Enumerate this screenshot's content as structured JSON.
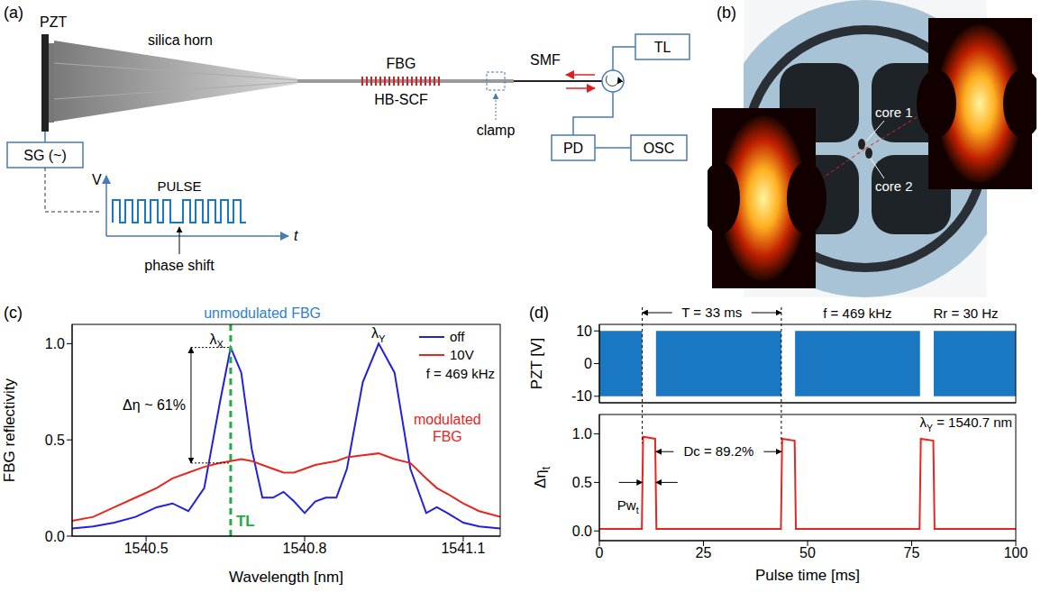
{
  "panel_a": {
    "letter": "(a)",
    "pzt": "PZT",
    "horn": "silica horn",
    "fbg": "FBG",
    "fiber": "HB-SCF",
    "clamp": "clamp",
    "smf": "SMF",
    "laser": "TL",
    "detector": "PD",
    "scope": "OSC",
    "generator": "SG (~)",
    "voltage_axis": "V",
    "pulse": "PULSE",
    "phase_shift": "phase shift",
    "time_axis": "t"
  },
  "panel_b": {
    "letter": "(b)",
    "core_1": "core 1",
    "core_2": "core 2"
  },
  "chart_data": [
    {
      "letter": "(c)",
      "type": "line",
      "x": [
        1540.36,
        1540.4,
        1540.44,
        1540.48,
        1540.52,
        1540.55,
        1540.58,
        1540.61,
        1540.64,
        1540.66,
        1540.68,
        1540.7,
        1540.72,
        1540.74,
        1540.76,
        1540.78,
        1540.8,
        1540.82,
        1540.84,
        1540.86,
        1540.88,
        1540.91,
        1540.94,
        1540.97,
        1541.0,
        1541.03,
        1541.05,
        1541.07,
        1541.1,
        1541.13,
        1541.17
      ],
      "series": [
        {
          "name": "off",
          "color": "#2020e0",
          "values": [
            0.04,
            0.05,
            0.07,
            0.1,
            0.15,
            0.17,
            0.13,
            0.25,
            0.7,
            0.98,
            0.85,
            0.45,
            0.2,
            0.2,
            0.23,
            0.18,
            0.12,
            0.18,
            0.2,
            0.2,
            0.35,
            0.8,
            1.0,
            0.85,
            0.35,
            0.12,
            0.15,
            0.12,
            0.07,
            0.05,
            0.04
          ]
        },
        {
          "name": "10V",
          "color": "#e8261e",
          "values": [
            0.08,
            0.1,
            0.15,
            0.2,
            0.25,
            0.3,
            0.33,
            0.36,
            0.38,
            0.39,
            0.4,
            0.39,
            0.37,
            0.35,
            0.33,
            0.33,
            0.35,
            0.37,
            0.38,
            0.39,
            0.41,
            0.42,
            0.43,
            0.4,
            0.38,
            0.3,
            0.25,
            0.22,
            0.17,
            0.13,
            0.1
          ]
        }
      ],
      "xlim": [
        1540.36,
        1541.17
      ],
      "xticks": [
        1540.5,
        1540.8,
        1541.1
      ],
      "ylim": [
        0,
        1.1
      ],
      "yticks": [
        {
          "value": 0,
          "label": "0.0"
        },
        {
          "value": 0.5,
          "label": "0.5"
        },
        {
          "value": 1,
          "label": "1.0"
        }
      ],
      "x_label": "Wavelength [nm]",
      "y_label": "FBG reflectivity",
      "legend": "upper right",
      "legend_note": "f = 469 kHz",
      "unmodulated_label": {
        "text": "unmodulated FBG",
        "color": "#2e7fd0"
      },
      "modulated_label": {
        "text": "modulated FBG",
        "color": "#e8261e"
      },
      "peak_labels": [
        "λX",
        "λY"
      ],
      "contrast": {
        "text": "Δη ~ 61%",
        "from": 0.38,
        "to": 0.98
      },
      "laser_line": {
        "label": "TL",
        "x": 1540.66,
        "color": "#22aa44"
      }
    },
    {
      "letter": "(d)",
      "type": "area",
      "x": [
        0,
        10.3,
        10.3,
        13.6,
        13.6,
        43.7,
        43.7,
        47,
        47,
        77,
        77,
        80.3,
        80.3,
        100
      ],
      "series": [
        {
          "color": "#1a78c2",
          "low": [
            -10,
            -10,
            0,
            0,
            -10,
            -10,
            0,
            0,
            -10,
            -10,
            0,
            0,
            -10,
            -10
          ],
          "high": [
            10,
            10,
            0,
            0,
            10,
            10,
            0,
            0,
            10,
            10,
            0,
            0,
            10,
            10
          ]
        }
      ],
      "xlim": [
        0,
        100
      ],
      "xticks": [
        0,
        25,
        50,
        75,
        100
      ],
      "ylim": [
        -12,
        12
      ],
      "yticks": [
        -10,
        0,
        10
      ],
      "y_label": "PZT [V]",
      "tick_labels": "y",
      "period": "T = 33 ms",
      "frequency": "f = 469 kHz",
      "repetition": "Rr = 30 Hz"
    },
    {
      "type": "line",
      "x": [
        0,
        10.2,
        10.5,
        13.4,
        13.7,
        43.6,
        43.9,
        46.9,
        47.2,
        76.9,
        77.2,
        80.2,
        80.5,
        100
      ],
      "values": [
        0.02,
        0.02,
        0.97,
        0.95,
        0.02,
        0.02,
        0.95,
        0.93,
        0.02,
        0.02,
        0.95,
        0.93,
        0.02,
        0.02
      ],
      "color": "#e8261e",
      "xlim": [
        0,
        100
      ],
      "xticks": [
        0,
        25,
        50,
        75,
        100
      ],
      "ylim": [
        -0.1,
        1.2
      ],
      "yticks": [
        {
          "value": 0,
          "label": "0.0"
        },
        {
          "value": 0.5,
          "label": "0.5"
        },
        {
          "value": 1,
          "label": "1.0"
        }
      ],
      "x_label": "Pulse time [ms]",
      "y_label": "Δηt",
      "duty_cycle": "Dc = 89.2%",
      "wavelength_note": "λY = 1540.7 nm",
      "pulse_width": "Pwt"
    }
  ]
}
